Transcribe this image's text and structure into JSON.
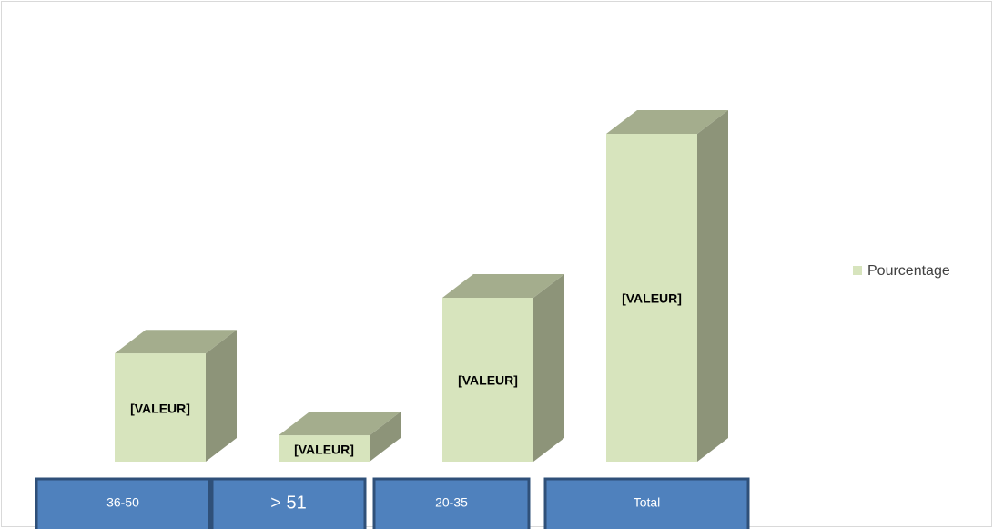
{
  "chart_data": {
    "type": "bar3d",
    "categories": [
      "36-50",
      "> 51",
      "20-35",
      "Total"
    ],
    "series": [
      {
        "name": "Pourcentage",
        "color": "#d7e4bd",
        "values": [
          33,
          8,
          50,
          100
        ],
        "value_labels": [
          "[VALEUR]",
          "[VALEUR]",
          "[VALEUR]",
          "[VALEUR]"
        ]
      }
    ],
    "legend": "right"
  }
}
